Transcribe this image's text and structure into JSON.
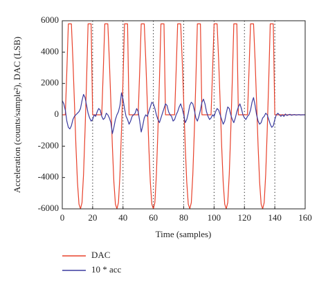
{
  "chart_data": {
    "type": "line",
    "xlabel": "Time (samples)",
    "ylabel": "Acceleration (counts/sample²), DAC (LSB)",
    "xlim": [
      0,
      160
    ],
    "xticks": [
      0,
      20,
      40,
      60,
      80,
      100,
      120,
      140,
      160
    ],
    "ylim": [
      -6000,
      6000
    ],
    "yticks": [
      -6000,
      -4000,
      -2000,
      0,
      2000,
      4000,
      6000
    ],
    "grid": "x",
    "legend": "bottom-left",
    "x": [
      0,
      1,
      2,
      3,
      4,
      5,
      6,
      7,
      8,
      9,
      10,
      11,
      12,
      13,
      14,
      15,
      16,
      17,
      18,
      19,
      20,
      21,
      22,
      23,
      24,
      25,
      26,
      27,
      28,
      29,
      30,
      31,
      32,
      33,
      34,
      35,
      36,
      37,
      38,
      39,
      40,
      41,
      42,
      43,
      44,
      45,
      46,
      47,
      48,
      49,
      50,
      51,
      52,
      53,
      54,
      55,
      56,
      57,
      58,
      59,
      60,
      61,
      62,
      63,
      64,
      65,
      66,
      67,
      68,
      69,
      70,
      71,
      72,
      73,
      74,
      75,
      76,
      77,
      78,
      79,
      80,
      81,
      82,
      83,
      84,
      85,
      86,
      87,
      88,
      89,
      90,
      91,
      92,
      93,
      94,
      95,
      96,
      97,
      98,
      99,
      100,
      101,
      102,
      103,
      104,
      105,
      106,
      107,
      108,
      109,
      110,
      111,
      112,
      113,
      114,
      115,
      116,
      117,
      118,
      119,
      120,
      121,
      122,
      123,
      124,
      125,
      126,
      127,
      128,
      129,
      130,
      131,
      132,
      133,
      134,
      135,
      136,
      137,
      138,
      139,
      140,
      141,
      142,
      143,
      144,
      145,
      146,
      147,
      148,
      149,
      150,
      151,
      152,
      153,
      154,
      155,
      156,
      157,
      158,
      159,
      160
    ],
    "series": [
      {
        "name": "DAC",
        "color": "#e8402a",
        "values": [
          0,
          0,
          0,
          2800,
          5800,
          5800,
          5800,
          3500,
          800,
          -2000,
          -4300,
          -5700,
          -6000,
          -5600,
          -3800,
          -1000,
          2200,
          5800,
          5800,
          5800,
          0,
          0,
          0,
          0,
          0,
          0,
          0,
          2800,
          5800,
          5800,
          5800,
          3500,
          800,
          -2000,
          -4300,
          -5700,
          -6000,
          -5600,
          -3800,
          -1000,
          2200,
          5800,
          5800,
          5800,
          0,
          0,
          0,
          0,
          0,
          0,
          0,
          2800,
          5800,
          5800,
          5800,
          3500,
          800,
          -2000,
          -4300,
          -5700,
          -6000,
          -5600,
          -3800,
          -1000,
          2200,
          5800,
          5800,
          5800,
          0,
          0,
          0,
          0,
          0,
          0,
          0,
          2800,
          5800,
          5800,
          5800,
          3500,
          800,
          -2000,
          -4300,
          -5700,
          -6000,
          -5600,
          -3800,
          -1000,
          2200,
          5800,
          5800,
          5800,
          0,
          0,
          0,
          0,
          0,
          0,
          0,
          2800,
          5800,
          5800,
          5800,
          3500,
          800,
          -2000,
          -4300,
          -5700,
          -6000,
          -5600,
          -3800,
          -1000,
          2200,
          5800,
          5800,
          5800,
          0,
          0,
          0,
          0,
          0,
          0,
          0,
          2800,
          5800,
          5800,
          5800,
          3500,
          800,
          -2000,
          -4300,
          -5700,
          -6000,
          -5600,
          -3800,
          -1000,
          2200,
          5800,
          5800,
          5800,
          0,
          0,
          0,
          0,
          0,
          0,
          0,
          0,
          0,
          0,
          0,
          0,
          0,
          0,
          0,
          0,
          0,
          0,
          0,
          0,
          0
        ]
      },
      {
        "name": "10 * acc",
        "color": "#3a3a9e",
        "values": [
          900,
          700,
          300,
          -400,
          -800,
          -900,
          -700,
          -300,
          -100,
          0,
          100,
          200,
          400,
          900,
          1300,
          1100,
          600,
          100,
          -200,
          -400,
          -300,
          0,
          -100,
          200,
          400,
          300,
          -100,
          -300,
          -200,
          100,
          0,
          -200,
          -500,
          -1200,
          -800,
          -300,
          0,
          200,
          600,
          1400,
          1000,
          400,
          -100,
          -300,
          -600,
          -400,
          -100,
          0,
          100,
          400,
          200,
          -400,
          -1100,
          -700,
          -200,
          0,
          -100,
          200,
          500,
          800,
          700,
          400,
          0,
          -300,
          -500,
          -200,
          100,
          400,
          700,
          600,
          200,
          0,
          -100,
          -400,
          -300,
          0,
          200,
          500,
          700,
          400,
          0,
          -500,
          -300,
          100,
          600,
          800,
          700,
          300,
          -200,
          -400,
          -100,
          300,
          800,
          1000,
          700,
          200,
          -100,
          -300,
          -200,
          0,
          -100,
          200,
          400,
          300,
          0,
          -300,
          -600,
          -400,
          100,
          500,
          400,
          0,
          -300,
          -500,
          -200,
          200,
          500,
          700,
          400,
          0,
          -200,
          -300,
          -100,
          0,
          300,
          800,
          1100,
          600,
          0,
          -400,
          -600,
          -500,
          -200,
          -100,
          100,
          0,
          -300,
          -600,
          -800,
          -700,
          -300,
          0,
          100,
          0,
          -100,
          0,
          -100,
          50,
          -50,
          0,
          30,
          -30,
          0,
          20,
          -20,
          0,
          10,
          -10,
          0,
          0,
          0
        ]
      }
    ]
  }
}
